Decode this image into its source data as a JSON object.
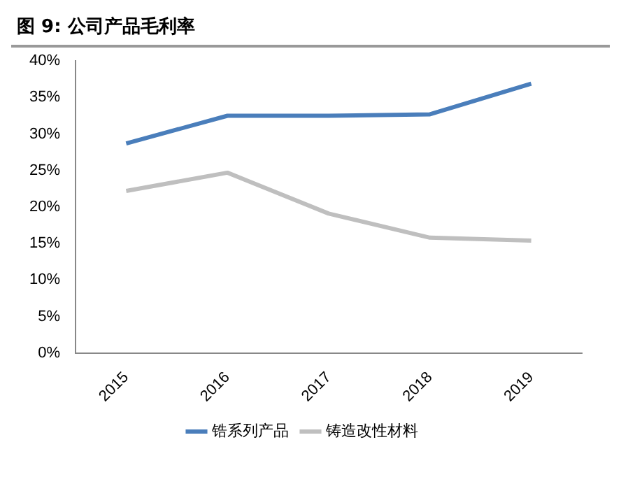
{
  "chart_data": {
    "type": "line",
    "title": "图 9:  公司产品毛利率",
    "categories": [
      "2015",
      "2016",
      "2017",
      "2018",
      "2019"
    ],
    "series": [
      {
        "name": "锆系列产品",
        "color": "#4a7ebb",
        "values": [
          28.7,
          32.5,
          32.5,
          32.7,
          36.9
        ]
      },
      {
        "name": "铸造改性材料",
        "color": "#bfbfbf",
        "values": [
          22.2,
          24.7,
          19.1,
          15.8,
          15.4
        ]
      }
    ],
    "ylim": [
      0,
      40
    ],
    "yticks": [
      {
        "value": 0,
        "label": "0%"
      },
      {
        "value": 5,
        "label": "5%"
      },
      {
        "value": 10,
        "label": "10%"
      },
      {
        "value": 15,
        "label": "15%"
      },
      {
        "value": 20,
        "label": "20%"
      },
      {
        "value": 25,
        "label": "25%"
      },
      {
        "value": 30,
        "label": "30%"
      },
      {
        "value": 35,
        "label": "35%"
      },
      {
        "value": 40,
        "label": "40%"
      }
    ],
    "legend": "bottom",
    "marker": "none",
    "line_style": "solid"
  }
}
